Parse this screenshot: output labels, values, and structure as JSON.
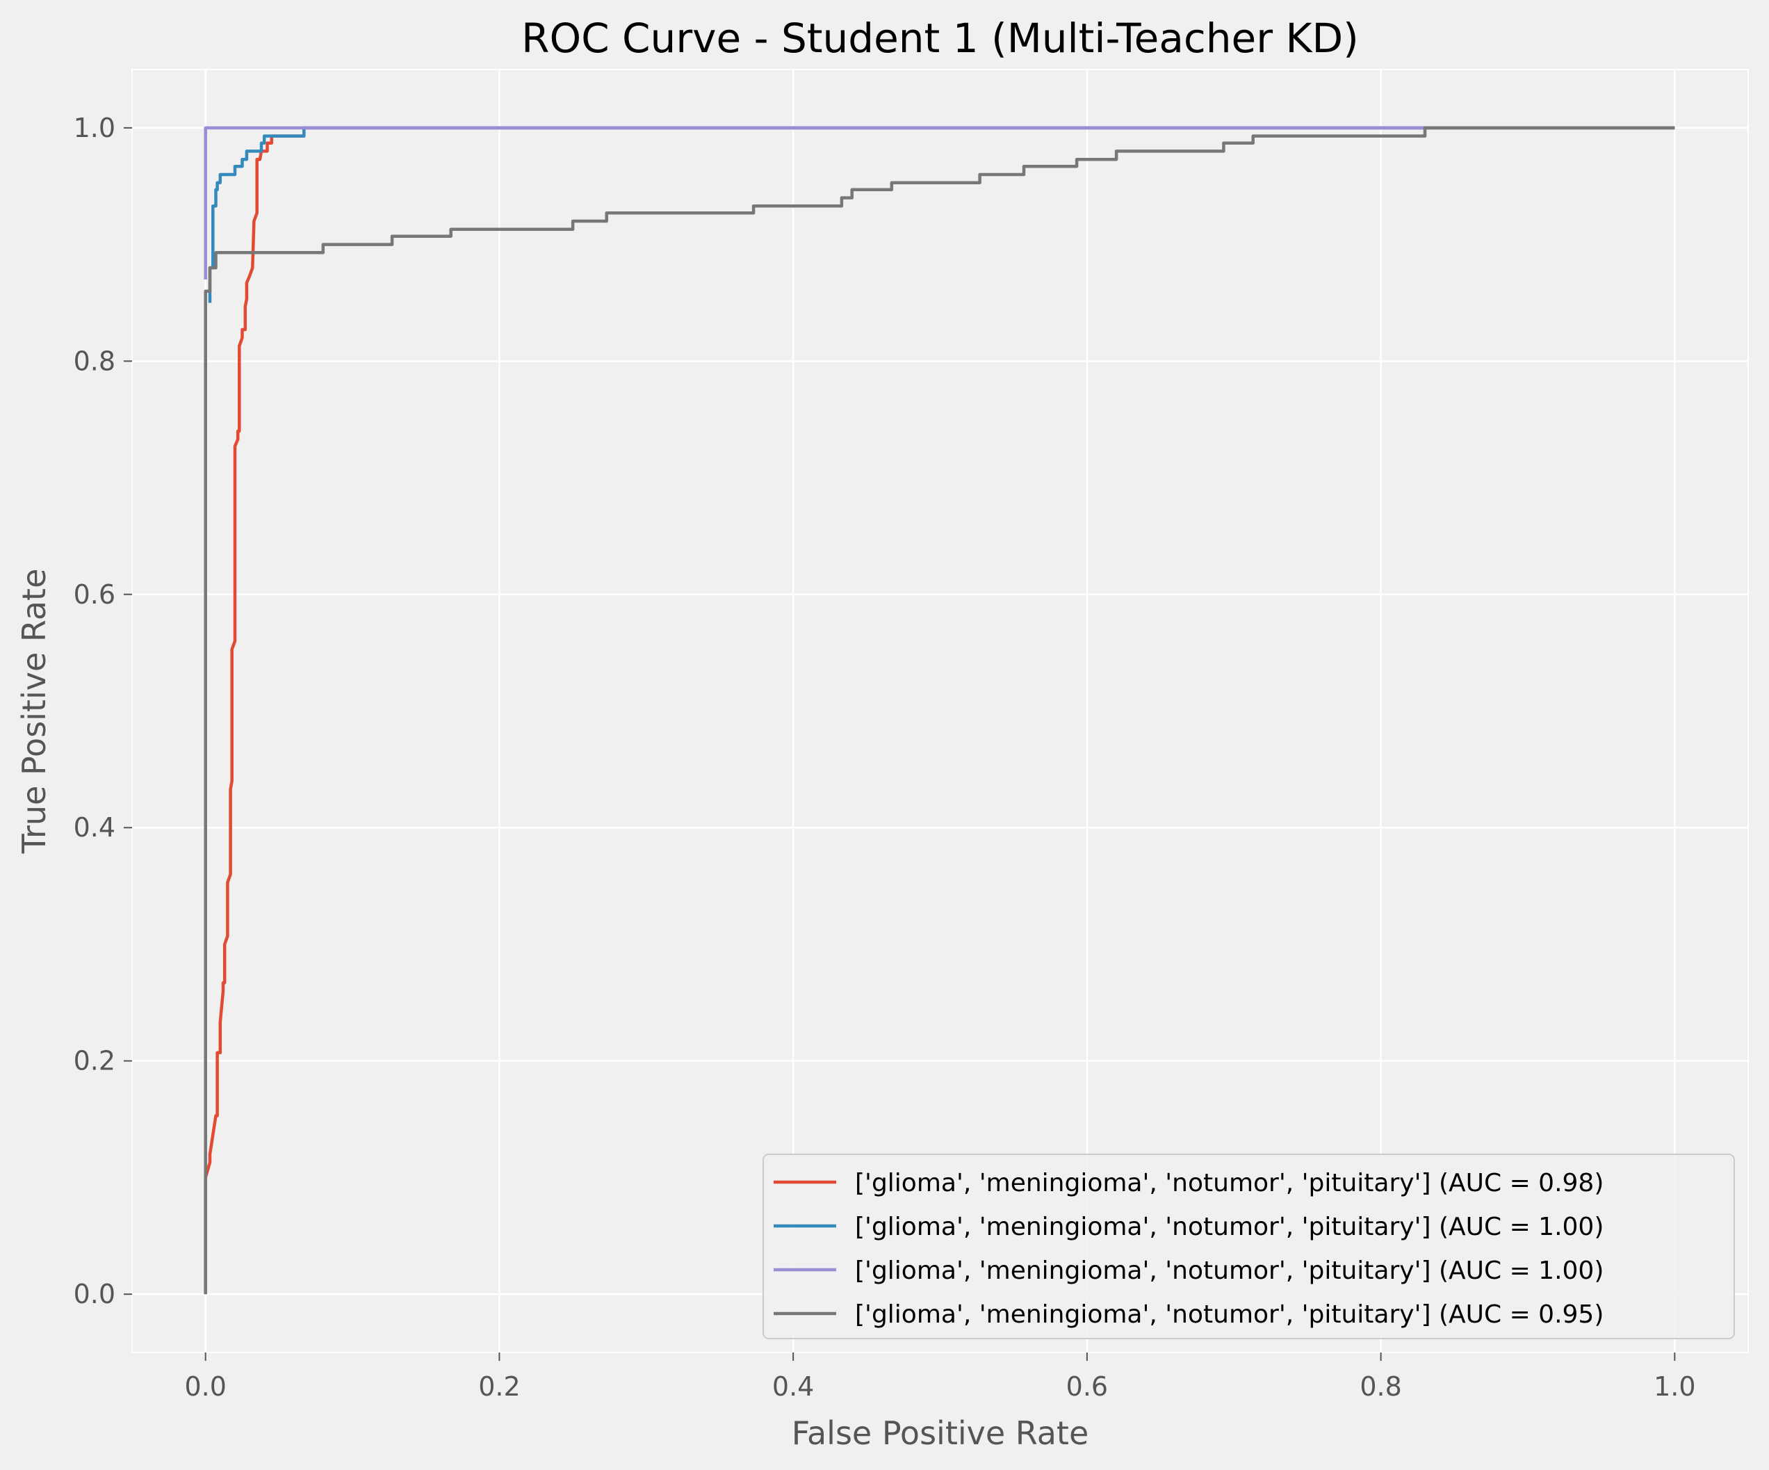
{
  "chart_data": {
    "type": "line",
    "title": "ROC Curve - Student 1 (Multi-Teacher KD)",
    "xlabel": "False Positive Rate",
    "ylabel": "True Positive Rate",
    "xlim": [
      -0.05,
      1.05
    ],
    "ylim": [
      -0.05,
      1.05
    ],
    "xticks": [
      0.0,
      0.2,
      0.4,
      0.6,
      0.8,
      1.0
    ],
    "xtick_labels": [
      "0.0",
      "0.2",
      "0.4",
      "0.6",
      "0.8",
      "1.0"
    ],
    "yticks": [
      0.0,
      0.2,
      0.4,
      0.6,
      0.8,
      1.0
    ],
    "ytick_labels": [
      "0.0",
      "0.2",
      "0.4",
      "0.6",
      "0.8",
      "1.0"
    ],
    "grid": true,
    "legend_position": "lower right",
    "background": "#f0f0f0",
    "grid_color": "#ffffff",
    "series": [
      {
        "name": "['glioma', 'meningioma', 'notumor', 'pituitary'] (AUC = 0.98)",
        "color": "#E24A33",
        "x": [
          0.0,
          0.0,
          0.003,
          0.003,
          0.007,
          0.008,
          0.008,
          0.01,
          0.01,
          0.012,
          0.012,
          0.013,
          0.013,
          0.015,
          0.015,
          0.017,
          0.017,
          0.018,
          0.018,
          0.02,
          0.02,
          0.022,
          0.022,
          0.023,
          0.023,
          0.025,
          0.025,
          0.027,
          0.027,
          0.028,
          0.028,
          0.03,
          0.03,
          0.032,
          0.032,
          0.033,
          0.033,
          0.035,
          0.035,
          0.037,
          0.037,
          0.038,
          0.038,
          0.042,
          0.042,
          0.045,
          0.045,
          0.048,
          0.048,
          0.052,
          0.052,
          0.067,
          0.067,
          1.0
        ],
        "y": [
          0.0,
          0.1,
          0.113,
          0.12,
          0.153,
          0.153,
          0.207,
          0.207,
          0.233,
          0.26,
          0.267,
          0.267,
          0.3,
          0.307,
          0.353,
          0.36,
          0.433,
          0.44,
          0.553,
          0.56,
          0.727,
          0.733,
          0.74,
          0.74,
          0.813,
          0.82,
          0.827,
          0.827,
          0.847,
          0.853,
          0.867,
          0.873,
          0.873,
          0.88,
          0.88,
          0.92,
          0.92,
          0.927,
          0.973,
          0.973,
          0.973,
          0.98,
          0.98,
          0.98,
          0.987,
          0.987,
          0.993,
          0.993,
          0.993,
          0.993,
          0.993,
          0.993,
          1.0,
          1.0
        ]
      },
      {
        "name": "['glioma', 'meningioma', 'notumor', 'pituitary'] (AUC = 1.00)",
        "color": "#348ABD",
        "x": [
          0.003,
          0.003,
          0.005,
          0.005,
          0.007,
          0.007,
          0.008,
          0.008,
          0.01,
          0.01,
          0.013,
          0.013,
          0.02,
          0.02,
          0.025,
          0.025,
          0.028,
          0.028,
          0.033,
          0.033,
          0.038,
          0.038,
          0.04,
          0.04,
          0.042,
          0.042,
          0.045,
          0.045,
          0.067,
          0.067,
          1.0
        ],
        "y": [
          0.85,
          0.88,
          0.88,
          0.933,
          0.933,
          0.947,
          0.947,
          0.953,
          0.953,
          0.96,
          0.96,
          0.96,
          0.96,
          0.967,
          0.967,
          0.973,
          0.973,
          0.98,
          0.98,
          0.98,
          0.98,
          0.987,
          0.987,
          0.993,
          0.993,
          0.993,
          0.993,
          0.993,
          0.993,
          1.0,
          1.0
        ]
      },
      {
        "name": "['glioma', 'meningioma', 'notumor', 'pituitary'] (AUC = 1.00)",
        "color": "#988ED5",
        "x": [
          0.0,
          0.0,
          0.0,
          0.067,
          1.0
        ],
        "y": [
          0.87,
          0.88,
          1.0,
          1.0,
          1.0
        ]
      },
      {
        "name": "['glioma', 'meningioma', 'notumor', 'pituitary'] (AUC = 0.95)",
        "color": "#777777",
        "x": [
          0.0,
          0.0,
          0.003,
          0.003,
          0.007,
          0.007,
          0.08,
          0.08,
          0.127,
          0.127,
          0.167,
          0.167,
          0.25,
          0.25,
          0.273,
          0.273,
          0.353,
          0.353,
          0.373,
          0.373,
          0.433,
          0.433,
          0.437,
          0.437,
          0.44,
          0.44,
          0.467,
          0.467,
          0.527,
          0.527,
          0.557,
          0.557,
          0.593,
          0.593,
          0.62,
          0.62,
          0.673,
          0.673,
          0.693,
          0.693,
          0.713,
          0.713,
          0.827,
          0.827,
          0.83,
          0.83,
          1.0
        ],
        "y": [
          0.0,
          0.86,
          0.86,
          0.88,
          0.88,
          0.893,
          0.893,
          0.9,
          0.9,
          0.907,
          0.907,
          0.913,
          0.913,
          0.92,
          0.92,
          0.927,
          0.927,
          0.927,
          0.927,
          0.933,
          0.933,
          0.94,
          0.94,
          0.94,
          0.94,
          0.947,
          0.947,
          0.953,
          0.953,
          0.96,
          0.96,
          0.967,
          0.967,
          0.973,
          0.973,
          0.98,
          0.98,
          0.98,
          0.98,
          0.987,
          0.987,
          0.993,
          0.993,
          0.993,
          0.993,
          1.0,
          1.0
        ]
      }
    ]
  }
}
